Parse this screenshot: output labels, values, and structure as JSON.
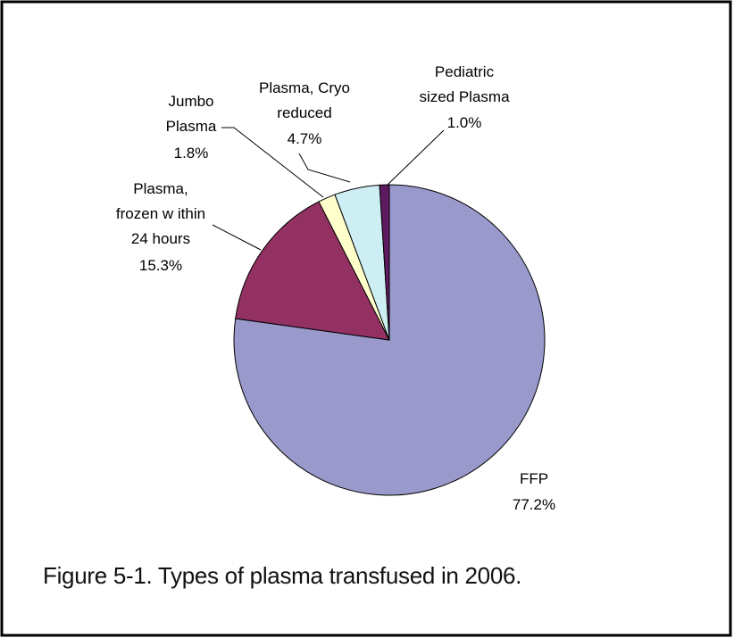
{
  "chart_data": {
    "type": "pie",
    "caption": "Figure 5-1. Types of plasma transfused in 2006.",
    "categories": [
      "FFP",
      "Plasma,\nfrozen w ithin\n24 hours",
      "Jumbo\nPlasma",
      "Plasma, Cryo\nreduced",
      "Pediatric\nsized Plasma"
    ],
    "values": [
      77.2,
      15.3,
      1.8,
      4.7,
      1.0
    ],
    "value_labels": [
      "77.2%",
      "15.3%",
      "1.8%",
      "4.7%",
      "1.0%"
    ],
    "colors": [
      "#9999cc",
      "#923162",
      "#ffffcc",
      "#cdeef2",
      "#5e1a5e"
    ]
  }
}
